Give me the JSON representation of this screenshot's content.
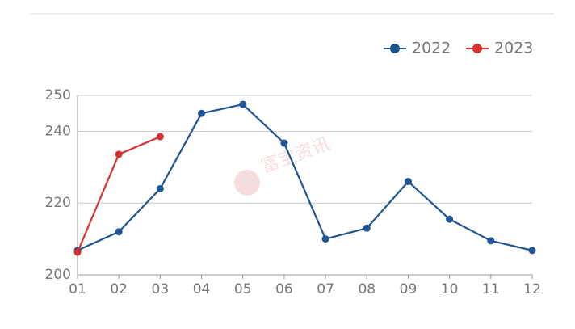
{
  "chart_data": {
    "type": "line",
    "categories": [
      "01",
      "02",
      "03",
      "04",
      "05",
      "06",
      "07",
      "08",
      "09",
      "10",
      "11",
      "12"
    ],
    "series": [
      {
        "name": "2022",
        "color": "#1f5591",
        "values": [
          206.8,
          212,
          224,
          245,
          247.5,
          236.7,
          210,
          213,
          226,
          215.5,
          209.5,
          206.8
        ]
      },
      {
        "name": "2023",
        "color": "#d63232",
        "values": [
          206.3,
          233.6,
          238.5,
          null,
          null,
          null,
          null,
          null,
          null,
          null,
          null,
          null
        ]
      }
    ],
    "ylim": [
      200,
      250
    ],
    "yticks": [
      200,
      220,
      240,
      250
    ],
    "grid": true,
    "legend": "top-right",
    "watermark": "富宝资讯"
  }
}
